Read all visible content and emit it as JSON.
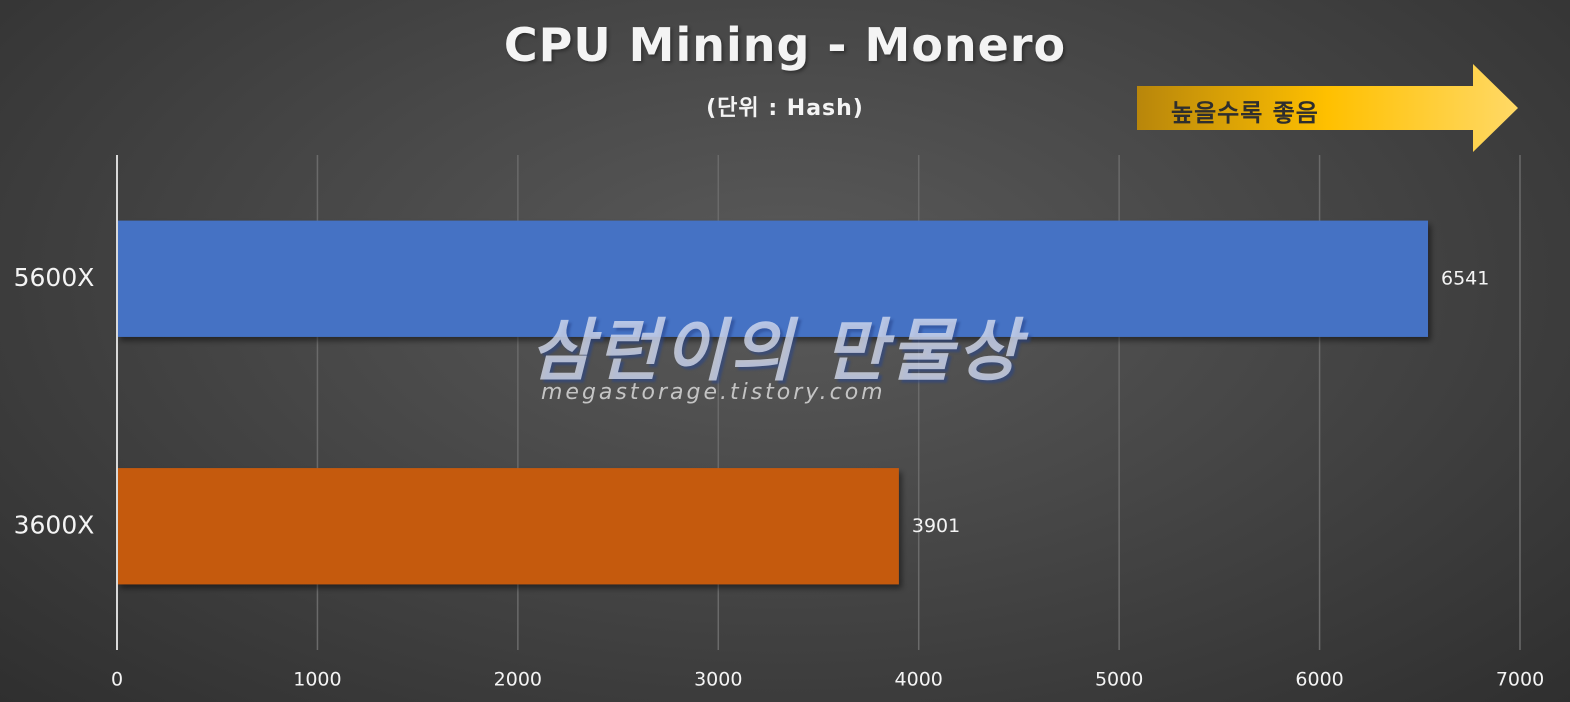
{
  "chart_data": {
    "type": "bar",
    "orientation": "horizontal",
    "title": "CPU Mining - Monero",
    "subtitle": "(단위 : Hash)",
    "categories": [
      "5600X",
      "3600X"
    ],
    "values": [
      6541,
      3901
    ],
    "data_labels": [
      "6541",
      "3901"
    ],
    "bar_colors": [
      "#4472C4",
      "#C55A11"
    ],
    "xlim": [
      0,
      7000
    ],
    "xticks": [
      0,
      1000,
      2000,
      3000,
      4000,
      5000,
      6000,
      7000
    ],
    "tick_labels": [
      "0",
      "1000",
      "2000",
      "3000",
      "4000",
      "5000",
      "6000",
      "7000"
    ],
    "grid": "vertical",
    "legend": "none"
  },
  "annotation": {
    "label": "높을수록 좋음",
    "colors": [
      "#B8860B",
      "#FFC000",
      "#FFD966"
    ]
  },
  "watermark": {
    "text": "삼런이의 만물상",
    "url": "megastorage.tistory.com"
  },
  "colors": {
    "background": "#474747",
    "text": "#F4F4F4",
    "gridline": "#6A6A6A",
    "axis": "#D9D9D9"
  }
}
